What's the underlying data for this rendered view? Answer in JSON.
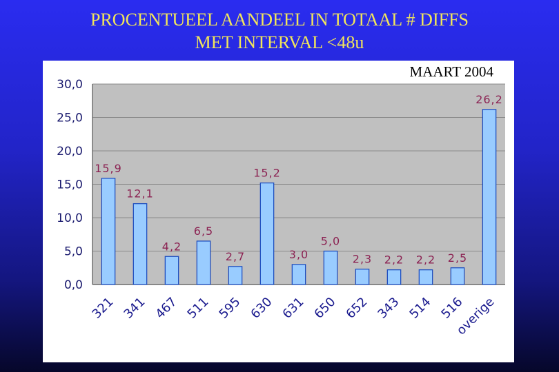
{
  "slide": {
    "title_line1": "PROCENTUEEL AANDEEL IN TOTAAL # DIFFS",
    "title_line2": "MET INTERVAL <48u",
    "subtitle": "MAART 2004"
  },
  "colors": {
    "bar_fill": "#99ccff",
    "bar_stroke": "#1f4fbf",
    "plot_bg": "#c0c0c0",
    "title": "#f2e65a",
    "data_label": "#8b2252",
    "axis_text": "#1a1a6e"
  },
  "chart_data": {
    "type": "bar",
    "title": "",
    "xlabel": "",
    "ylabel": "",
    "categories": [
      "321",
      "341",
      "467",
      "511",
      "595",
      "630",
      "631",
      "650",
      "652",
      "343",
      "514",
      "516",
      "overige"
    ],
    "values": [
      15.9,
      12.1,
      4.2,
      6.5,
      2.7,
      15.2,
      3.0,
      5.0,
      2.3,
      2.2,
      2.2,
      2.5,
      26.2
    ],
    "value_labels": [
      "15,9",
      "12,1",
      "4,2",
      "6,5",
      "2,7",
      "15,2",
      "3,0",
      "5,0",
      "2,3",
      "2,2",
      "2,2",
      "2,5",
      "26,2"
    ],
    "ylim": [
      0,
      30
    ],
    "yticks": [
      0,
      5,
      10,
      15,
      20,
      25,
      30
    ],
    "ytick_labels": [
      "0,0",
      "5,0",
      "10,0",
      "15,0",
      "20,0",
      "25,0",
      "30,0"
    ],
    "grid": true,
    "legend": "none"
  }
}
